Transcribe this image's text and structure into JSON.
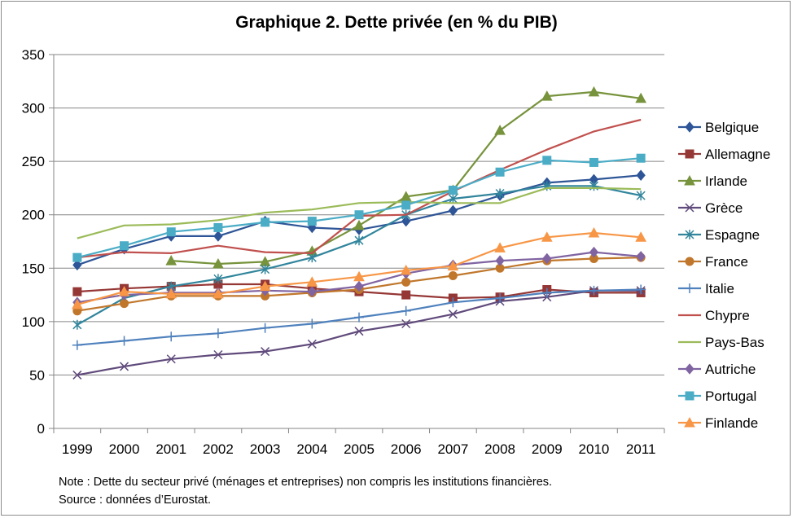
{
  "chart_data": {
    "type": "line",
    "title": "Graphique 2. Dette privée (en % du PIB)",
    "xlabel": "",
    "ylabel": "",
    "ylim": [
      0,
      350
    ],
    "yticks": [
      0,
      50,
      100,
      150,
      200,
      250,
      300,
      350
    ],
    "grid": true,
    "legend_position": "right",
    "categories": [
      "1999",
      "2000",
      "2001",
      "2002",
      "2003",
      "2004",
      "2005",
      "2006",
      "2007",
      "2008",
      "2009",
      "2010",
      "2011"
    ],
    "series": [
      {
        "name": "Belgique",
        "color": "#2e5597",
        "marker": "diamond",
        "values": [
          153,
          168,
          180,
          180,
          194,
          188,
          186,
          194,
          204,
          218,
          230,
          233,
          237
        ]
      },
      {
        "name": "Allemagne",
        "color": "#953735",
        "marker": "square",
        "values": [
          128,
          131,
          133,
          135,
          135,
          131,
          128,
          125,
          122,
          123,
          130,
          127,
          127
        ]
      },
      {
        "name": "Irlande",
        "color": "#77933c",
        "marker": "triangle",
        "values": [
          null,
          null,
          157,
          154,
          156,
          166,
          190,
          217,
          223,
          279,
          311,
          315,
          309
        ]
      },
      {
        "name": "Grèce",
        "color": "#604a7b",
        "marker": "x",
        "values": [
          50,
          58,
          65,
          69,
          72,
          79,
          91,
          98,
          107,
          119,
          123,
          129,
          129
        ]
      },
      {
        "name": "Espagne",
        "color": "#31859c",
        "marker": "star",
        "values": [
          97,
          122,
          133,
          140,
          149,
          160,
          176,
          200,
          215,
          220,
          227,
          227,
          218
        ]
      },
      {
        "name": "France",
        "color": "#c0772c",
        "marker": "circle",
        "values": [
          110,
          117,
          124,
          124,
          124,
          127,
          130,
          137,
          143,
          150,
          157,
          159,
          160
        ]
      },
      {
        "name": "Italie",
        "color": "#4f81bd",
        "marker": "plus",
        "values": [
          78,
          82,
          86,
          89,
          94,
          98,
          104,
          110,
          118,
          122,
          127,
          129,
          130
        ]
      },
      {
        "name": "Chypre",
        "color": "#c0504d",
        "marker": "none",
        "values": [
          160,
          165,
          164,
          171,
          165,
          164,
          199,
          200,
          222,
          242,
          261,
          278,
          289
        ]
      },
      {
        "name": "Pays-Bas",
        "color": "#9bbb59",
        "marker": "none",
        "values": [
          178,
          190,
          191,
          195,
          202,
          205,
          211,
          212,
          211,
          211,
          225,
          225,
          224
        ]
      },
      {
        "name": "Autriche",
        "color": "#8064a2",
        "marker": "diamond",
        "values": [
          118,
          125,
          127,
          127,
          129,
          128,
          133,
          145,
          153,
          157,
          159,
          165,
          161
        ]
      },
      {
        "name": "Portugal",
        "color": "#4bacc6",
        "marker": "square",
        "values": [
          160,
          171,
          184,
          188,
          193,
          194,
          200,
          209,
          223,
          240,
          251,
          249,
          253
        ]
      },
      {
        "name": "Finlande",
        "color": "#f79646",
        "marker": "triangle",
        "values": [
          116,
          128,
          126,
          126,
          133,
          137,
          142,
          148,
          152,
          169,
          179,
          183,
          179
        ]
      }
    ]
  },
  "notes": {
    "note": "Note : Dette du secteur privé (ménages et entreprises) non compris les institutions financières.",
    "source": "Source : données d’Eurostat."
  }
}
